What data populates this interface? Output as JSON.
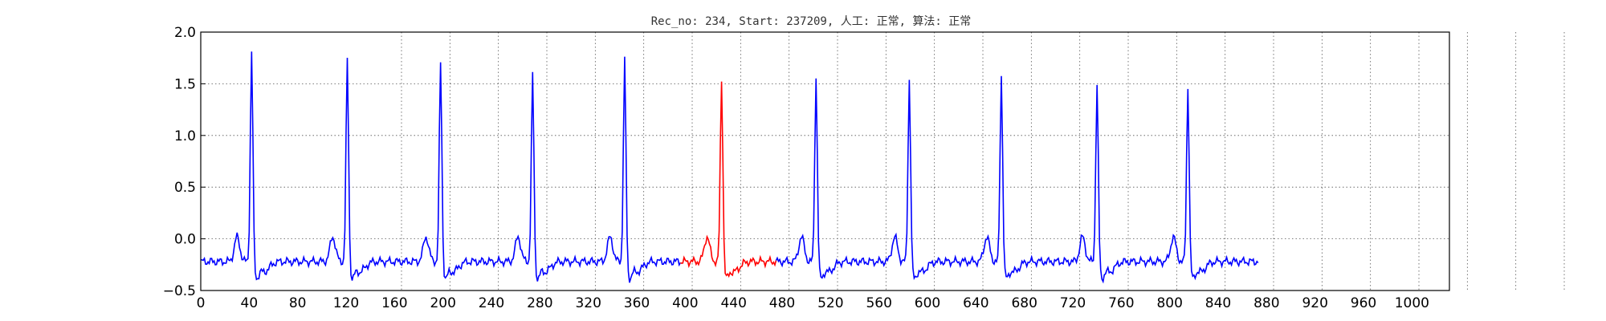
{
  "chart_data": {
    "type": "line",
    "title": "Rec_no: 234, Start: 237209, 人工: 正常, 算法: 正常",
    "xlabel": "",
    "ylabel": "",
    "xlim": [
      0,
      1000
    ],
    "ylim": [
      -0.5,
      2.0
    ],
    "grid": true,
    "x_ticks": [
      0,
      40,
      80,
      120,
      160,
      200,
      240,
      280,
      320,
      360,
      400,
      440,
      480,
      520,
      560,
      600,
      640,
      680,
      720,
      760,
      800,
      840,
      880,
      920,
      960,
      1000
    ],
    "x_tick_labels": [
      "0",
      "40",
      "80",
      "120",
      "160",
      "200",
      "240",
      "280",
      "320",
      "360",
      "400",
      "440",
      "480",
      "520",
      "560",
      "600",
      "640",
      "680",
      "720",
      "760",
      "800",
      "840",
      "880",
      "920",
      "960",
      "1000"
    ],
    "y_ticks": [
      -0.5,
      0.0,
      0.5,
      1.0,
      1.5,
      2.0
    ],
    "y_tick_labels": [
      "−0.5",
      "0.0",
      "0.5",
      "1.0",
      "1.5",
      "2.0"
    ],
    "x_tick_spacing_data": 3.2,
    "data_x_range": [
      0,
      873
    ],
    "highlight_range": [
      396,
      475
    ],
    "colors": {
      "normal": "#0000ff",
      "highlight": "#ff0000"
    },
    "beats": [
      {
        "r_index": 42,
        "amplitude": 1.75
      },
      {
        "r_index": 121,
        "amplitude": 1.66
      },
      {
        "r_index": 198,
        "amplitude": 1.64
      },
      {
        "r_index": 274,
        "amplitude": 1.52
      },
      {
        "r_index": 350,
        "amplitude": 1.66
      },
      {
        "r_index": 430,
        "amplitude": 1.48
      },
      {
        "r_index": 508,
        "amplitude": 1.5
      },
      {
        "r_index": 585,
        "amplitude": 1.48
      },
      {
        "r_index": 661,
        "amplitude": 1.52
      },
      {
        "r_index": 740,
        "amplitude": 1.42
      },
      {
        "r_index": 815,
        "amplitude": 1.41
      }
    ],
    "baseline": -0.22
  }
}
